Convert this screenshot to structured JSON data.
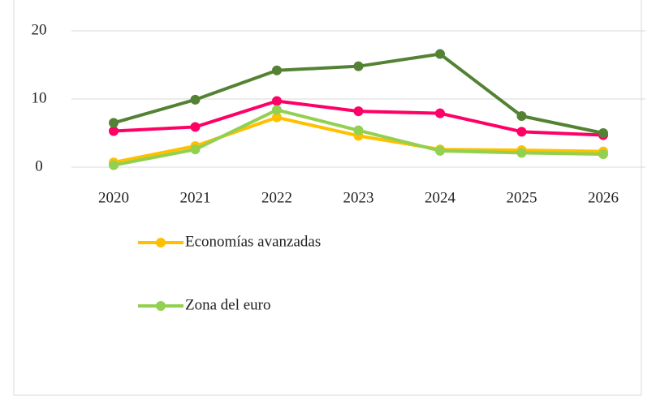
{
  "chart_data": {
    "type": "line",
    "categories": [
      "2020",
      "2021",
      "2022",
      "2023",
      "2024",
      "2025",
      "2026"
    ],
    "series": [
      {
        "color": "#ff0066",
        "values": [
          5.3,
          5.9,
          9.7,
          8.2,
          7.9,
          5.2,
          4.7
        ]
      },
      {
        "color": "#548235",
        "values": [
          6.5,
          9.9,
          14.2,
          14.8,
          16.6,
          7.5,
          5.0
        ]
      },
      {
        "name": "Economías avanzadas",
        "color": "#ffc000",
        "values": [
          0.7,
          3.1,
          7.3,
          4.6,
          2.6,
          2.5,
          2.3
        ]
      },
      {
        "name": "Zona del euro",
        "color": "#92d050",
        "values": [
          0.3,
          2.6,
          8.4,
          5.4,
          2.4,
          2.1,
          1.9
        ]
      }
    ],
    "ylim": [
      0,
      20
    ],
    "yticks": [
      0,
      10,
      20
    ],
    "grid": true
  }
}
